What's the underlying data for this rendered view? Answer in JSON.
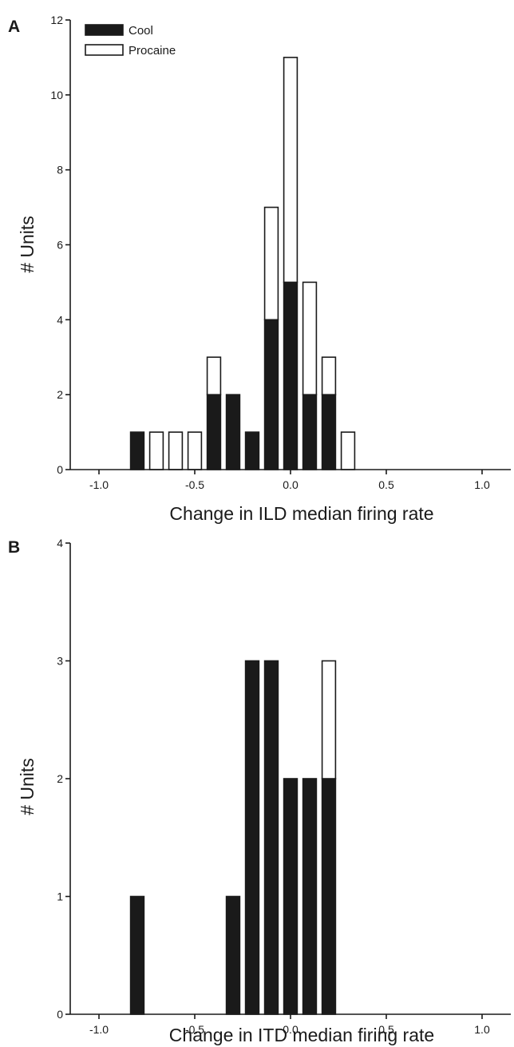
{
  "chart_data": [
    {
      "panel_label": "A",
      "type": "bar",
      "stacked": true,
      "xlabel": "Change in ILD median firing rate",
      "ylabel": "# Units",
      "xlim": [
        -1.15,
        1.15
      ],
      "ylim": [
        0,
        12
      ],
      "xticks": [
        "-1.0",
        "-0.5",
        "0.0",
        "0.5",
        "1.0"
      ],
      "xtick_values": [
        -1.0,
        -0.5,
        0.0,
        0.5,
        1.0
      ],
      "yticks": [
        "0",
        "2",
        "4",
        "6",
        "8",
        "10",
        "12"
      ],
      "ytick_values": [
        0,
        2,
        4,
        6,
        8,
        10,
        12
      ],
      "bin_width": 0.1,
      "x": [
        -0.8,
        -0.7,
        -0.6,
        -0.5,
        -0.4,
        -0.3,
        -0.2,
        -0.1,
        0.0,
        0.1,
        0.2,
        0.3
      ],
      "series": [
        {
          "name": "Cool",
          "color": "#1a1a1a",
          "values": [
            1,
            0,
            0,
            0,
            2,
            2,
            1,
            4,
            5,
            2,
            2,
            0
          ]
        },
        {
          "name": "Procaine",
          "color": "#ffffff",
          "values": [
            0,
            1,
            1,
            1,
            1,
            0,
            0,
            3,
            6,
            3,
            1,
            1
          ]
        }
      ],
      "legend": "top-left",
      "grid": false
    },
    {
      "panel_label": "B",
      "type": "bar",
      "stacked": true,
      "xlabel": "Change in ITD median firing rate",
      "ylabel": "# Units",
      "xlim": [
        -1.15,
        1.15
      ],
      "ylim": [
        0,
        4
      ],
      "xticks": [
        "-1.0",
        "-0.5",
        "0.0",
        "0.5",
        "1.0"
      ],
      "xtick_values": [
        -1.0,
        -0.5,
        0.0,
        0.5,
        1.0
      ],
      "yticks": [
        "0",
        "1",
        "2",
        "3",
        "4"
      ],
      "ytick_values": [
        0,
        1,
        2,
        3,
        4
      ],
      "bin_width": 0.1,
      "x": [
        -0.8,
        -0.3,
        -0.2,
        -0.1,
        0.0,
        0.1,
        0.2
      ],
      "series": [
        {
          "name": "Cool",
          "color": "#1a1a1a",
          "values": [
            1,
            1,
            3,
            3,
            2,
            2,
            2
          ]
        },
        {
          "name": "Procaine",
          "color": "#ffffff",
          "values": [
            0,
            0,
            0,
            0,
            0,
            0,
            1
          ]
        }
      ],
      "grid": false
    }
  ]
}
